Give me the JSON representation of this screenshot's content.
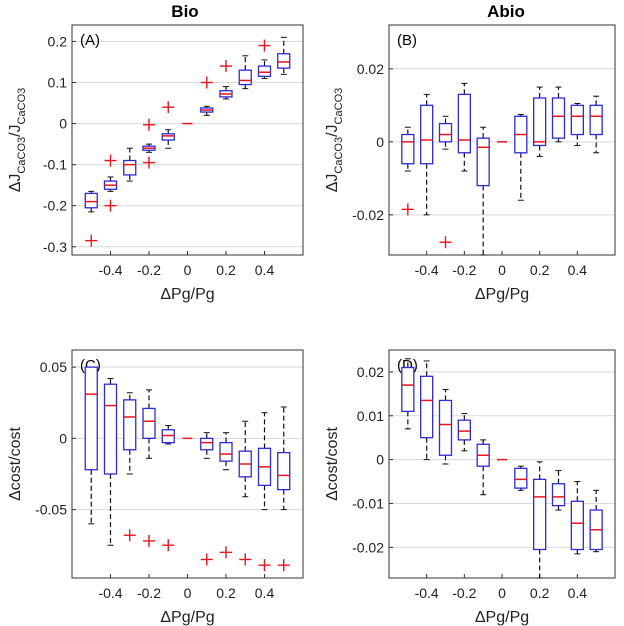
{
  "figure": {
    "col_titles": [
      "Bio",
      "Abio"
    ]
  },
  "colors": {
    "box": "#2b2bd8",
    "median": "#e8141e",
    "outlier": "#e8141e",
    "whisker": "#111111",
    "grid": "#d9d9d9",
    "axis": "#333333"
  },
  "chart_data": [
    {
      "type": "box",
      "id": "A",
      "panel_label": "(A)",
      "title": "Bio",
      "xlabel_prefix": "Δ",
      "xlabel": "Pg/Pg",
      "ylabel_prefix": "Δ",
      "ylabel": "J",
      "ylabel_sub": "CaCO3",
      "ylabel_mid": "/J",
      "ylabel_sub2": "CaCO3",
      "xlim": [
        -0.6,
        0.6
      ],
      "ylim": [
        -0.32,
        0.24
      ],
      "xticks": [
        -0.4,
        -0.2,
        0,
        0.2,
        0.4
      ],
      "xtick_labels": [
        "-0.4",
        "-0.2",
        "0",
        "0.2",
        "0.4"
      ],
      "yticks": [
        -0.3,
        -0.2,
        -0.1,
        0,
        0.1,
        0.2
      ],
      "ytick_labels": [
        "-0.3",
        "-0.2",
        "-0.1",
        "0",
        "0.1",
        "0.2"
      ],
      "boxes": [
        {
          "x": -0.5,
          "lw": -0.215,
          "q1": -0.205,
          "med": -0.19,
          "q3": -0.17,
          "uw": -0.165
        },
        {
          "x": -0.4,
          "lw": -0.165,
          "q1": -0.16,
          "med": -0.15,
          "q3": -0.14,
          "uw": -0.13
        },
        {
          "x": -0.3,
          "lw": -0.14,
          "q1": -0.125,
          "med": -0.1,
          "q3": -0.09,
          "uw": -0.06
        },
        {
          "x": -0.2,
          "lw": -0.07,
          "q1": -0.065,
          "med": -0.06,
          "q3": -0.055,
          "uw": -0.05
        },
        {
          "x": -0.1,
          "lw": -0.06,
          "q1": -0.04,
          "med": -0.03,
          "q3": -0.025,
          "uw": -0.015
        },
        {
          "x": 0.1,
          "lw": 0.02,
          "q1": 0.028,
          "med": 0.033,
          "q3": 0.038,
          "uw": 0.042
        },
        {
          "x": 0.2,
          "lw": 0.06,
          "q1": 0.065,
          "med": 0.072,
          "q3": 0.08,
          "uw": 0.09
        },
        {
          "x": 0.3,
          "lw": 0.085,
          "q1": 0.095,
          "med": 0.105,
          "q3": 0.13,
          "uw": 0.165
        },
        {
          "x": 0.4,
          "lw": 0.11,
          "q1": 0.115,
          "med": 0.125,
          "q3": 0.14,
          "uw": 0.155
        },
        {
          "x": 0.5,
          "lw": 0.12,
          "q1": 0.135,
          "med": 0.15,
          "q3": 0.17,
          "uw": 0.21
        }
      ],
      "outliers": [
        {
          "x": -0.5,
          "y": -0.285
        },
        {
          "x": -0.4,
          "y": -0.2
        },
        {
          "x": -0.4,
          "y": -0.09
        },
        {
          "x": -0.2,
          "y": -0.095
        },
        {
          "x": -0.2,
          "y": -0.003
        },
        {
          "x": -0.1,
          "y": 0.04
        },
        {
          "x": 0.1,
          "y": 0.1
        },
        {
          "x": 0.2,
          "y": 0.14
        },
        {
          "x": 0.4,
          "y": 0.19
        }
      ],
      "zero_marker": {
        "x": 0,
        "y": 0
      }
    },
    {
      "type": "box",
      "id": "B",
      "panel_label": "(B)",
      "title": "Abio",
      "xlabel_prefix": "Δ",
      "xlabel": "Pg/Pg",
      "ylabel_prefix": "Δ",
      "ylabel": "J",
      "ylabel_sub": "CaCO3",
      "ylabel_mid": "/J",
      "ylabel_sub2": "CaCO3",
      "xlim": [
        -0.6,
        0.6
      ],
      "ylim": [
        -0.031,
        0.032
      ],
      "xticks": [
        -0.4,
        -0.2,
        0,
        0.2,
        0.4
      ],
      "xtick_labels": [
        "-0.4",
        "-0.2",
        "0",
        "0.2",
        "0.4"
      ],
      "yticks": [
        -0.02,
        0,
        0.02
      ],
      "ytick_labels": [
        "-0.02",
        "0",
        "0.02"
      ],
      "boxes": [
        {
          "x": -0.5,
          "lw": -0.008,
          "q1": -0.006,
          "med": 0.0,
          "q3": 0.002,
          "uw": 0.004
        },
        {
          "x": -0.4,
          "lw": -0.02,
          "q1": -0.006,
          "med": 0.0005,
          "q3": 0.01,
          "uw": 0.013
        },
        {
          "x": -0.3,
          "lw": -0.002,
          "q1": 0.0,
          "med": 0.002,
          "q3": 0.005,
          "uw": 0.007
        },
        {
          "x": -0.2,
          "lw": -0.008,
          "q1": -0.003,
          "med": 0.0005,
          "q3": 0.013,
          "uw": 0.016
        },
        {
          "x": -0.1,
          "lw": -0.031,
          "q1": -0.012,
          "med": -0.0015,
          "q3": 0.001,
          "uw": 0.004
        },
        {
          "x": 0.1,
          "lw": -0.016,
          "q1": -0.003,
          "med": 0.002,
          "q3": 0.007,
          "uw": 0.0075
        },
        {
          "x": 0.2,
          "lw": -0.004,
          "q1": -0.001,
          "med": 0.0,
          "q3": 0.012,
          "uw": 0.015
        },
        {
          "x": 0.3,
          "lw": 0.0,
          "q1": 0.001,
          "med": 0.007,
          "q3": 0.012,
          "uw": 0.015
        },
        {
          "x": 0.4,
          "lw": -0.001,
          "q1": 0.002,
          "med": 0.007,
          "q3": 0.01,
          "uw": 0.0105
        },
        {
          "x": 0.5,
          "lw": -0.003,
          "q1": 0.002,
          "med": 0.007,
          "q3": 0.01,
          "uw": 0.0125
        }
      ],
      "outliers": [
        {
          "x": -0.5,
          "y": -0.0185
        },
        {
          "x": -0.3,
          "y": -0.0275
        }
      ],
      "zero_marker": {
        "x": 0,
        "y": 0
      }
    },
    {
      "type": "box",
      "id": "C",
      "panel_label": "(C)",
      "title": "",
      "xlabel_prefix": "Δ",
      "xlabel": "Pg/Pg",
      "ylabel_prefix": "Δ",
      "ylabel": "cost/cost",
      "ylabel_sub": "",
      "ylabel_mid": "",
      "ylabel_sub2": "",
      "xlim": [
        -0.6,
        0.6
      ],
      "ylim": [
        -0.098,
        0.062
      ],
      "xticks": [
        -0.4,
        -0.2,
        0,
        0.2,
        0.4
      ],
      "xtick_labels": [
        "-0.4",
        "-0.2",
        "0",
        "0.2",
        "0.4"
      ],
      "yticks": [
        -0.05,
        0,
        0.05
      ],
      "ytick_labels": [
        "-0.05",
        "0",
        "0.05"
      ],
      "boxes": [
        {
          "x": -0.5,
          "lw": -0.06,
          "q1": -0.022,
          "med": 0.031,
          "q3": 0.05,
          "uw": 0.05
        },
        {
          "x": -0.4,
          "lw": -0.075,
          "q1": -0.025,
          "med": 0.023,
          "q3": 0.038,
          "uw": 0.042
        },
        {
          "x": -0.3,
          "lw": -0.025,
          "q1": -0.008,
          "med": 0.015,
          "q3": 0.027,
          "uw": 0.032
        },
        {
          "x": -0.2,
          "lw": -0.014,
          "q1": 0.0,
          "med": 0.012,
          "q3": 0.021,
          "uw": 0.034
        },
        {
          "x": -0.1,
          "lw": -0.004,
          "q1": -0.003,
          "med": 0.002,
          "q3": 0.006,
          "uw": 0.009
        },
        {
          "x": 0.1,
          "lw": -0.014,
          "q1": -0.008,
          "med": -0.003,
          "q3": 0.0,
          "uw": 0.004
        },
        {
          "x": 0.2,
          "lw": -0.022,
          "q1": -0.016,
          "med": -0.011,
          "q3": -0.003,
          "uw": 0.004
        },
        {
          "x": 0.3,
          "lw": -0.041,
          "q1": -0.027,
          "med": -0.018,
          "q3": -0.009,
          "uw": 0.012
        },
        {
          "x": 0.4,
          "lw": -0.05,
          "q1": -0.033,
          "med": -0.02,
          "q3": -0.007,
          "uw": 0.018
        },
        {
          "x": 0.5,
          "lw": -0.05,
          "q1": -0.036,
          "med": -0.026,
          "q3": -0.01,
          "uw": 0.022
        }
      ],
      "outliers": [
        {
          "x": -0.3,
          "y": -0.068
        },
        {
          "x": -0.2,
          "y": -0.072
        },
        {
          "x": -0.1,
          "y": -0.075
        },
        {
          "x": 0.1,
          "y": -0.085
        },
        {
          "x": 0.2,
          "y": -0.08
        },
        {
          "x": 0.3,
          "y": -0.085
        },
        {
          "x": 0.4,
          "y": -0.089
        },
        {
          "x": 0.5,
          "y": -0.089
        }
      ],
      "zero_marker": {
        "x": 0,
        "y": 0
      }
    },
    {
      "type": "box",
      "id": "D",
      "panel_label": "(D)",
      "title": "",
      "xlabel_prefix": "Δ",
      "xlabel": "Pg/Pg",
      "ylabel_prefix": "Δ",
      "ylabel": "cost/cost",
      "ylabel_sub": "",
      "ylabel_mid": "",
      "ylabel_sub2": "",
      "xlim": [
        -0.6,
        0.6
      ],
      "ylim": [
        -0.027,
        0.025
      ],
      "xticks": [
        -0.4,
        -0.2,
        0,
        0.2,
        0.4
      ],
      "xtick_labels": [
        "-0.4",
        "-0.2",
        "0",
        "0.2",
        "0.4"
      ],
      "yticks": [
        -0.02,
        -0.01,
        0,
        0.01,
        0.02
      ],
      "ytick_labels": [
        "-0.02",
        "-0.01",
        "0",
        "0.01",
        "0.02"
      ],
      "boxes": [
        {
          "x": -0.5,
          "lw": 0.007,
          "q1": 0.011,
          "med": 0.017,
          "q3": 0.021,
          "uw": 0.023
        },
        {
          "x": -0.4,
          "lw": 0.0,
          "q1": 0.005,
          "med": 0.0135,
          "q3": 0.019,
          "uw": 0.0225
        },
        {
          "x": -0.3,
          "lw": -0.001,
          "q1": 0.001,
          "med": 0.008,
          "q3": 0.0135,
          "uw": 0.016
        },
        {
          "x": -0.2,
          "lw": 0.002,
          "q1": 0.0045,
          "med": 0.0065,
          "q3": 0.009,
          "uw": 0.0105
        },
        {
          "x": -0.1,
          "lw": -0.008,
          "q1": -0.0015,
          "med": 0.001,
          "q3": 0.0035,
          "uw": 0.0045
        },
        {
          "x": 0.1,
          "lw": -0.007,
          "q1": -0.0065,
          "med": -0.0045,
          "q3": -0.002,
          "uw": -0.0015
        },
        {
          "x": 0.2,
          "lw": -0.027,
          "q1": -0.0205,
          "med": -0.0085,
          "q3": -0.0045,
          "uw": -0.0005
        },
        {
          "x": 0.3,
          "lw": -0.0115,
          "q1": -0.0105,
          "med": -0.0085,
          "q3": -0.0055,
          "uw": -0.0025
        },
        {
          "x": 0.4,
          "lw": -0.0215,
          "q1": -0.0205,
          "med": -0.0145,
          "q3": -0.0095,
          "uw": -0.005
        },
        {
          "x": 0.5,
          "lw": -0.021,
          "q1": -0.0205,
          "med": -0.016,
          "q3": -0.0115,
          "uw": -0.007
        }
      ],
      "outliers": [],
      "zero_marker": {
        "x": 0,
        "y": 0
      }
    }
  ]
}
